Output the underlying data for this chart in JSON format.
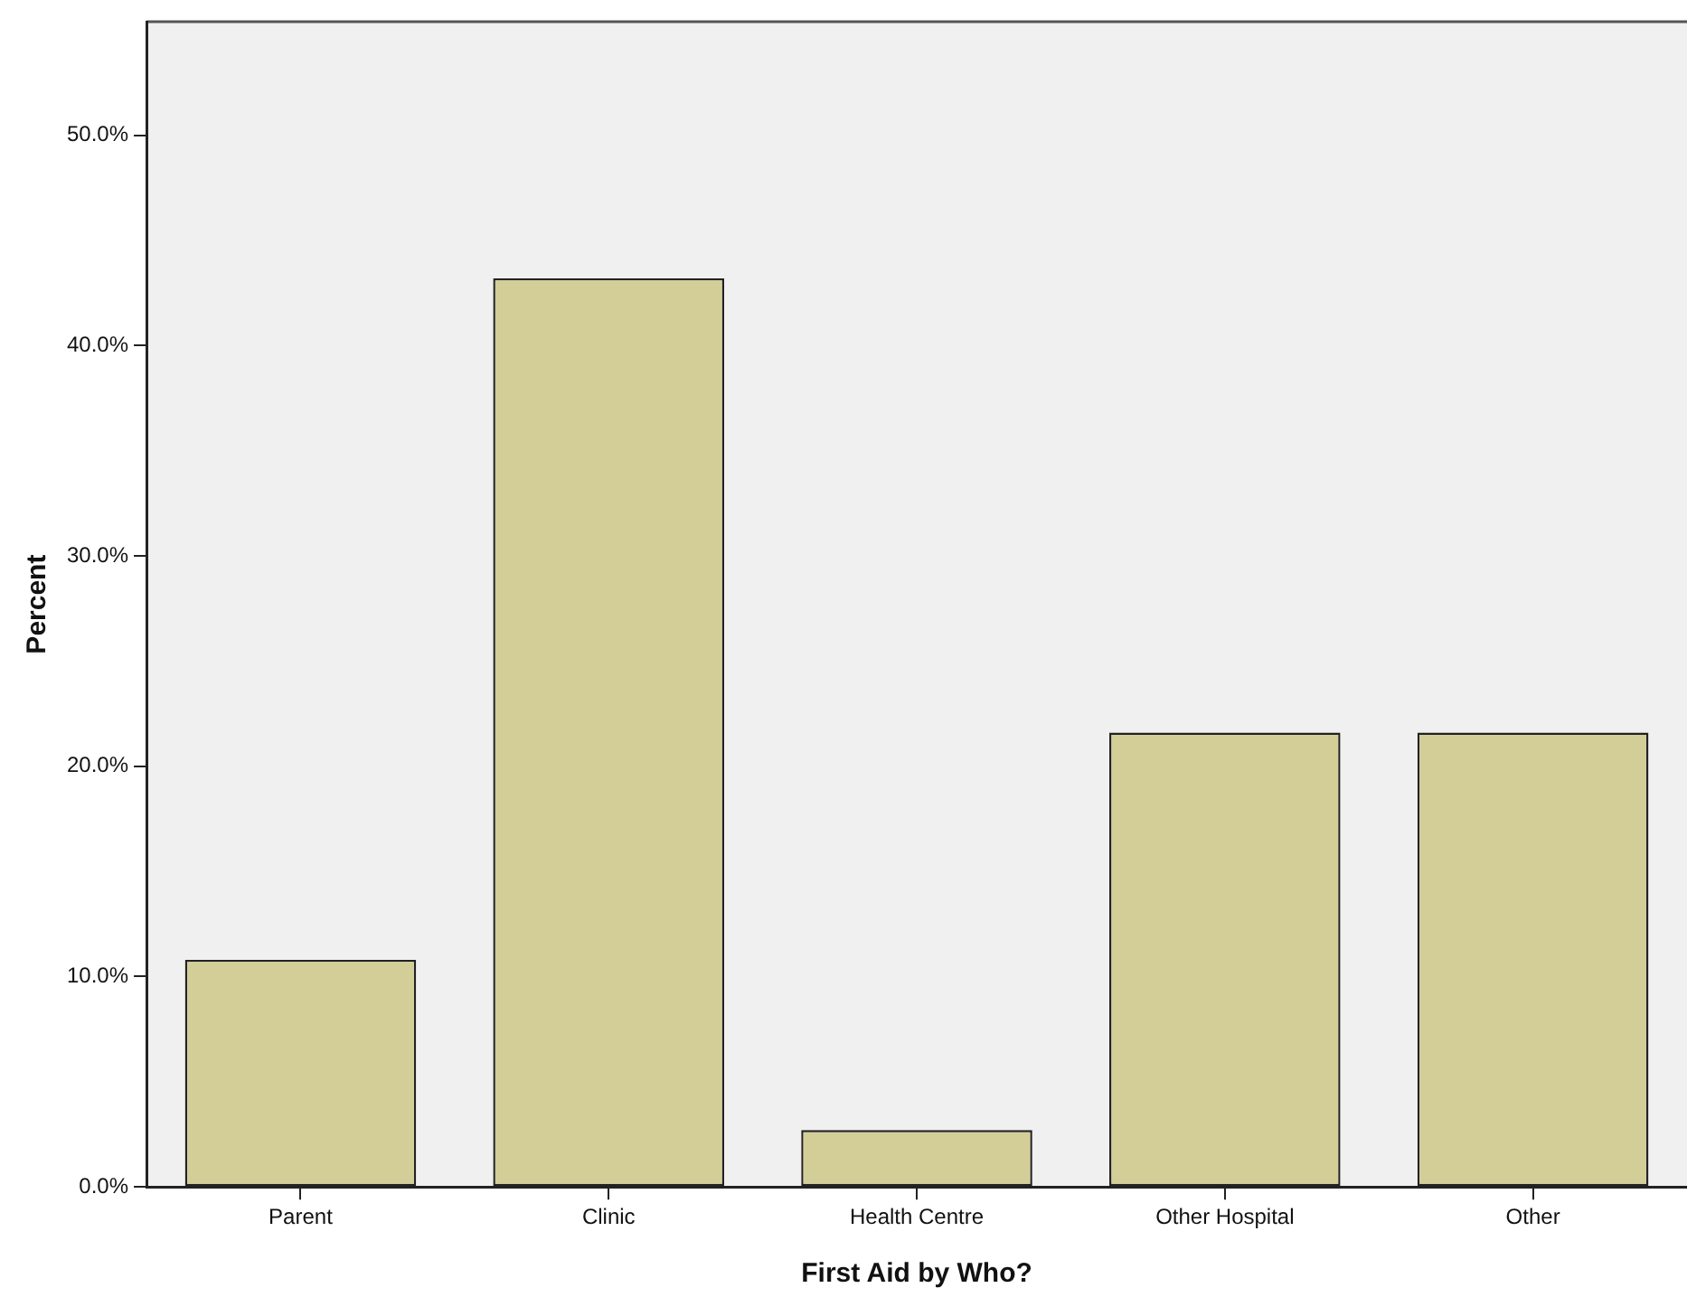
{
  "chart_data": {
    "type": "bar",
    "xlabel": "First Aid by Who?",
    "ylabel": "Percent",
    "categories": [
      "Parent",
      "Clinic",
      "Health Centre",
      "Other Hospital",
      "Other"
    ],
    "values": [
      10.8,
      43.2,
      2.7,
      21.6,
      21.6
    ],
    "color": "#d3ce97",
    "ylim": [
      0,
      55.4
    ],
    "yticks": [
      {
        "value": 0,
        "label": "0.0%"
      },
      {
        "value": 10,
        "label": "10.0%"
      },
      {
        "value": 20,
        "label": "20.0%"
      },
      {
        "value": 30,
        "label": "30.0%"
      },
      {
        "value": 40,
        "label": "40.0%"
      },
      {
        "value": 50,
        "label": "50.0%"
      }
    ],
    "grid": false,
    "legend": false
  }
}
